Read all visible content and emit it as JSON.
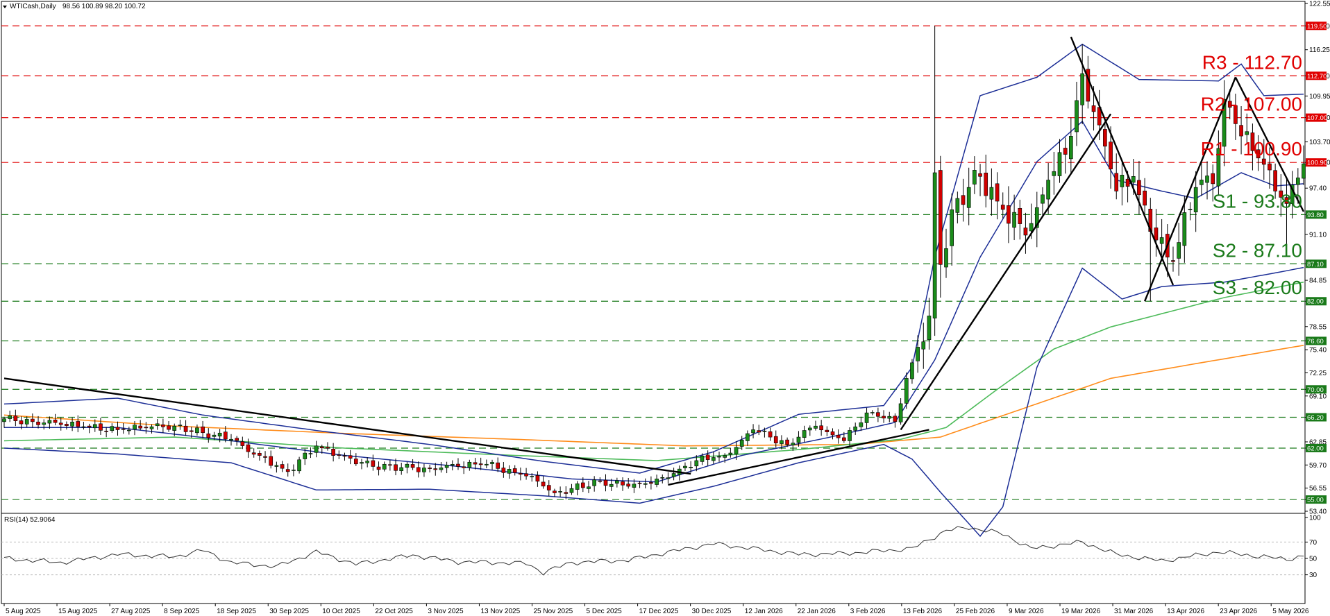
{
  "header": {
    "symbol": "WTICash,Daily",
    "ohlc": "98.56 100.89 98.20 100.72"
  },
  "rsi_header": "RSI(14) 52.9064",
  "colors": {
    "candle_up": "#1a8c1a",
    "candle_down": "#d10000",
    "resistance": "#e00000",
    "support": "#1a7a1a",
    "bollinger": "#1c2e96",
    "ma_green": "#4dbb5a",
    "ma_orange": "#ff8c1a",
    "trendline": "#000000",
    "rsi_line": "#333333"
  },
  "chart_data": [
    {
      "type": "candlestick",
      "title": "WTICash,Daily",
      "ylim": [
        53.4,
        122.55
      ],
      "y_ticks": [
        "122.55",
        "119.50",
        "116.25",
        "112.70",
        "109.95",
        "107.00",
        "103.70",
        "100.90",
        "97.40",
        "93.80",
        "91.10",
        "87.10",
        "84.85",
        "82.00",
        "78.55",
        "76.60",
        "75.40",
        "72.25",
        "70.00",
        "69.10",
        "66.20",
        "62.85",
        "62.00",
        "59.70",
        "56.55",
        "55.00",
        "53.40"
      ],
      "x_ticks": [
        "5 Aug 2025",
        "15 Aug 2025",
        "27 Aug 2025",
        "8 Sep 2025",
        "18 Sep 2025",
        "30 Sep 2025",
        "10 Oct 2025",
        "22 Oct 2025",
        "3 Nov 2025",
        "13 Nov 2025",
        "25 Nov 2025",
        "5 Dec 2025",
        "17 Dec 2025",
        "30 Dec 2025",
        "12 Jan 2026",
        "22 Jan 2026",
        "3 Feb 2026",
        "13 Feb 2026",
        "25 Feb 2026",
        "9 Mar 2026",
        "19 Mar 2026",
        "31 Mar 2026",
        "13 Apr 2026",
        "23 Apr 2026",
        "5 May 2026"
      ],
      "levels": [
        {
          "name": "R3 - 112.70",
          "value": 112.7,
          "tag": "112.70",
          "kind": "resistance"
        },
        {
          "name": "R2 - 107.00",
          "value": 107.0,
          "tag": "107.00",
          "kind": "resistance"
        },
        {
          "name": "R1 - 100.90",
          "value": 100.9,
          "tag": "100.90",
          "kind": "resistance"
        },
        {
          "name": "S1 - 93.80",
          "value": 93.8,
          "tag": "93.80",
          "kind": "support"
        },
        {
          "name": "S2 - 87.10",
          "value": 87.1,
          "tag": "87.10",
          "kind": "support"
        },
        {
          "name": "S3 - 82.00",
          "value": 82.0,
          "tag": "82.00",
          "kind": "support"
        }
      ],
      "extra_levels": [
        {
          "value": 119.5,
          "tag": "119.50",
          "kind": "resistance"
        },
        {
          "value": 76.6,
          "tag": "76.60",
          "kind": "support"
        },
        {
          "value": 70.0,
          "tag": "70.00",
          "kind": "support"
        },
        {
          "value": 66.2,
          "tag": "66.20",
          "kind": "support"
        },
        {
          "value": 62.0,
          "tag": "62.00",
          "kind": "support"
        },
        {
          "value": 55.0,
          "tag": "55.00",
          "kind": "support"
        }
      ],
      "key_closes": [
        {
          "i": 0,
          "close": 66.0
        },
        {
          "i": 10,
          "close": 65.2
        },
        {
          "i": 20,
          "close": 64.5
        },
        {
          "i": 30,
          "close": 65.0
        },
        {
          "i": 40,
          "close": 63.2
        },
        {
          "i": 50,
          "close": 58.8
        },
        {
          "i": 55,
          "close": 62.3
        },
        {
          "i": 65,
          "close": 59.5
        },
        {
          "i": 75,
          "close": 59.2
        },
        {
          "i": 85,
          "close": 59.8
        },
        {
          "i": 92,
          "close": 58.2
        },
        {
          "i": 97,
          "close": 55.9
        },
        {
          "i": 105,
          "close": 57.5
        },
        {
          "i": 110,
          "close": 56.8
        },
        {
          "i": 116,
          "close": 58.0
        },
        {
          "i": 122,
          "close": 60.3
        },
        {
          "i": 127,
          "close": 61.0
        },
        {
          "i": 132,
          "close": 64.5
        },
        {
          "i": 138,
          "close": 62.5
        },
        {
          "i": 143,
          "close": 65.0
        },
        {
          "i": 148,
          "close": 63.0
        },
        {
          "i": 152,
          "close": 66.8
        },
        {
          "i": 157,
          "close": 65.6
        },
        {
          "i": 159,
          "close": 71.5
        },
        {
          "i": 163,
          "close": 80.0
        },
        {
          "i": 164,
          "close": 99.5
        },
        {
          "i": 165,
          "close": 87.0
        },
        {
          "i": 168,
          "close": 96.0
        },
        {
          "i": 172,
          "close": 99.0
        },
        {
          "i": 176,
          "close": 94.5
        },
        {
          "i": 180,
          "close": 91.0
        },
        {
          "i": 184,
          "close": 98.5
        },
        {
          "i": 187,
          "close": 102.0
        },
        {
          "i": 190,
          "close": 113.0
        },
        {
          "i": 193,
          "close": 106.0
        },
        {
          "i": 196,
          "close": 97.0
        },
        {
          "i": 199,
          "close": 99.0
        },
        {
          "i": 202,
          "close": 91.5
        },
        {
          "i": 205,
          "close": 88.0
        },
        {
          "i": 207,
          "close": 90.0
        },
        {
          "i": 210,
          "close": 97.5
        },
        {
          "i": 213,
          "close": 98.0
        },
        {
          "i": 215,
          "close": 109.5
        },
        {
          "i": 218,
          "close": 104.5
        },
        {
          "i": 221,
          "close": 101.5
        },
        {
          "i": 224,
          "close": 97.0
        },
        {
          "i": 226,
          "close": 95.3
        },
        {
          "i": 228,
          "close": 98.8
        },
        {
          "i": 229,
          "close": 100.72
        }
      ],
      "bollinger_upper": [
        [
          0,
          68.0
        ],
        [
          20,
          68.8
        ],
        [
          35,
          66.5
        ],
        [
          55,
          64.4
        ],
        [
          75,
          62.5
        ],
        [
          95,
          60.2
        ],
        [
          112,
          58.6
        ],
        [
          125,
          61.5
        ],
        [
          140,
          66.6
        ],
        [
          155,
          67.8
        ],
        [
          160,
          73.0
        ],
        [
          164,
          88.0
        ],
        [
          172,
          110.0
        ],
        [
          182,
          112.5
        ],
        [
          190,
          117.0
        ],
        [
          200,
          112.2
        ],
        [
          214,
          112.0
        ],
        [
          218,
          114.3
        ],
        [
          222,
          110.0
        ],
        [
          229,
          110.2
        ]
      ],
      "bollinger_middle": [
        [
          0,
          64.8
        ],
        [
          20,
          64.8
        ],
        [
          40,
          63.0
        ],
        [
          60,
          61.0
        ],
        [
          80,
          59.5
        ],
        [
          100,
          57.8
        ],
        [
          115,
          57.4
        ],
        [
          130,
          61.0
        ],
        [
          145,
          63.4
        ],
        [
          157,
          65.5
        ],
        [
          164,
          74.0
        ],
        [
          172,
          88.0
        ],
        [
          182,
          101.0
        ],
        [
          190,
          106.5
        ],
        [
          196,
          98.5
        ],
        [
          204,
          97.0
        ],
        [
          210,
          96.0
        ],
        [
          218,
          99.5
        ],
        [
          224,
          97.7
        ],
        [
          229,
          98.0
        ]
      ],
      "bollinger_lower": [
        [
          0,
          62.0
        ],
        [
          20,
          61.2
        ],
        [
          40,
          60.0
        ],
        [
          55,
          56.3
        ],
        [
          75,
          56.4
        ],
        [
          95,
          55.5
        ],
        [
          112,
          54.5
        ],
        [
          125,
          56.8
        ],
        [
          140,
          60.0
        ],
        [
          155,
          62.5
        ],
        [
          160,
          60.5
        ],
        [
          165,
          56.0
        ],
        [
          172,
          50.0
        ],
        [
          176,
          54.0
        ],
        [
          182,
          73.0
        ],
        [
          190,
          86.5
        ],
        [
          197,
          82.3
        ],
        [
          204,
          84.0
        ],
        [
          215,
          84.6
        ],
        [
          225,
          86.0
        ],
        [
          229,
          86.6
        ]
      ],
      "ma_green": [
        [
          0,
          63.0
        ],
        [
          30,
          63.5
        ],
        [
          60,
          62.0
        ],
        [
          90,
          61.0
        ],
        [
          115,
          60.3
        ],
        [
          140,
          61.8
        ],
        [
          158,
          63.2
        ],
        [
          166,
          64.8
        ],
        [
          175,
          70.0
        ],
        [
          185,
          75.5
        ],
        [
          195,
          78.5
        ],
        [
          205,
          80.5
        ],
        [
          215,
          82.5
        ],
        [
          229,
          84.6
        ]
      ],
      "ma_orange": [
        [
          0,
          66.5
        ],
        [
          30,
          65.0
        ],
        [
          60,
          64.0
        ],
        [
          90,
          63.2
        ],
        [
          120,
          62.3
        ],
        [
          150,
          62.5
        ],
        [
          165,
          63.5
        ],
        [
          180,
          67.5
        ],
        [
          195,
          71.5
        ],
        [
          210,
          73.5
        ],
        [
          229,
          76.0
        ]
      ],
      "trendlines": [
        {
          "from": [
            0,
            71.5
          ],
          "to": [
            121,
            58.5
          ]
        },
        {
          "from": [
            117,
            57.0
          ],
          "to": [
            163,
            64.5
          ]
        },
        {
          "from": [
            158,
            64.5
          ],
          "to": [
            195,
            107.5
          ]
        },
        {
          "from": [
            188,
            118.0
          ],
          "to": [
            206,
            84.2
          ]
        },
        {
          "from": [
            201,
            82.0
          ],
          "to": [
            217,
            112.5
          ]
        },
        {
          "from": [
            217,
            112.5
          ],
          "to": [
            229,
            94.2
          ]
        }
      ]
    },
    {
      "type": "line",
      "title": "RSI(14) 52.9064",
      "ylim": [
        0,
        100
      ],
      "y_ticks": [
        "100",
        "70",
        "50",
        "30",
        "0"
      ],
      "last_value": 52.9064,
      "key_points": [
        [
          0,
          50
        ],
        [
          10,
          45
        ],
        [
          20,
          55
        ],
        [
          30,
          52
        ],
        [
          35,
          60
        ],
        [
          40,
          45
        ],
        [
          48,
          40
        ],
        [
          55,
          58
        ],
        [
          62,
          43
        ],
        [
          72,
          54
        ],
        [
          80,
          46
        ],
        [
          92,
          44
        ],
        [
          95,
          33
        ],
        [
          100,
          45
        ],
        [
          110,
          48
        ],
        [
          115,
          55
        ],
        [
          125,
          68
        ],
        [
          132,
          62
        ],
        [
          140,
          55
        ],
        [
          148,
          56
        ],
        [
          160,
          62
        ],
        [
          166,
          84
        ],
        [
          170,
          88
        ],
        [
          176,
          80
        ],
        [
          181,
          62
        ],
        [
          190,
          70
        ],
        [
          196,
          55
        ],
        [
          204,
          47
        ],
        [
          214,
          58
        ],
        [
          222,
          52
        ],
        [
          226,
          49
        ],
        [
          229,
          53
        ]
      ]
    }
  ]
}
